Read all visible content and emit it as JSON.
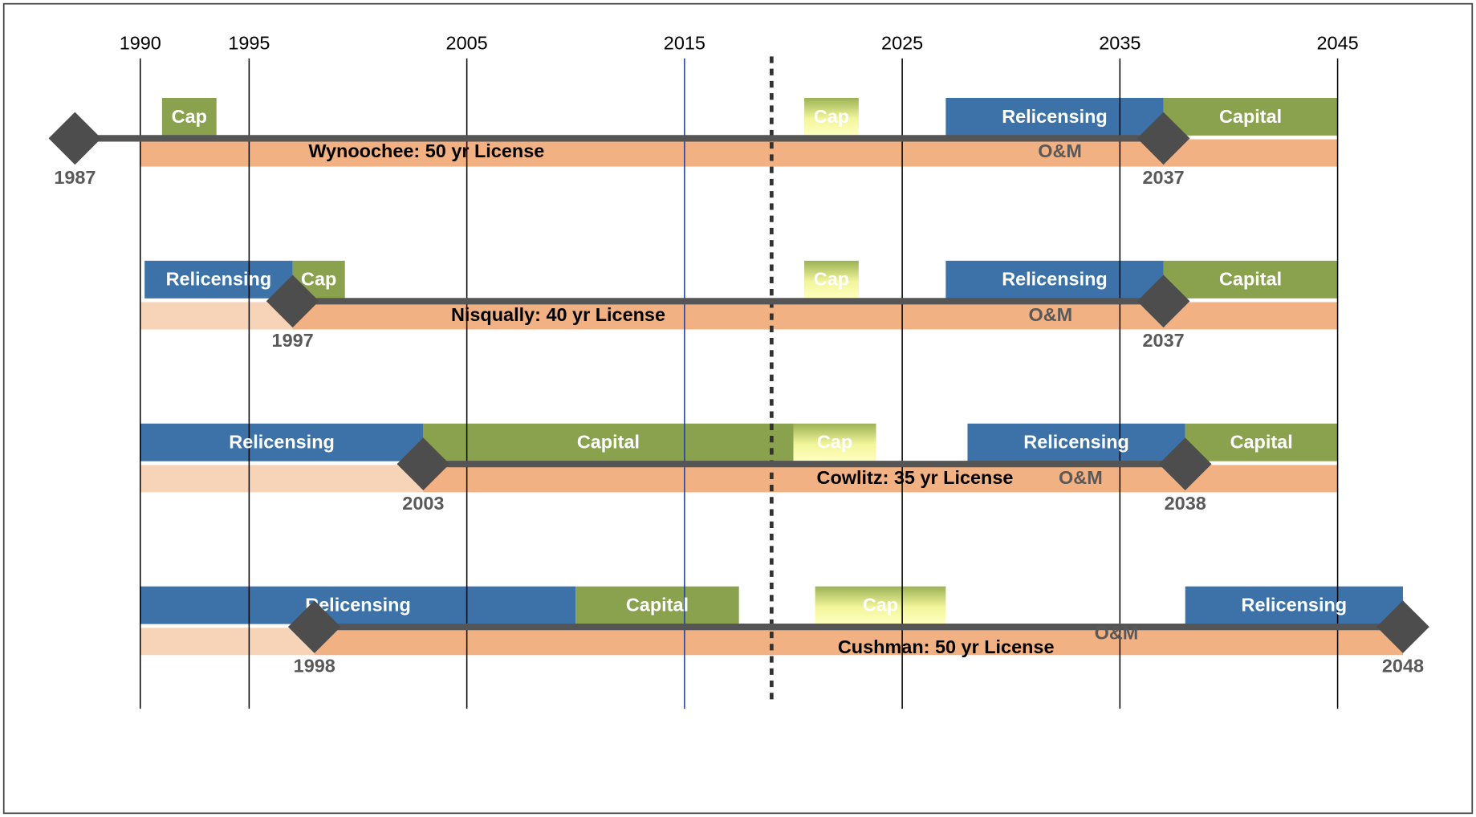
{
  "timeline": {
    "xlim": [
      1990,
      2045
    ],
    "xticks": [
      1990,
      1995,
      2005,
      2015,
      2025,
      2035,
      2045
    ],
    "tick_colors": [
      "#000000",
      "#000000",
      "#000000",
      "#1f3c9c",
      "#000000",
      "#000000",
      "#000000"
    ],
    "now": 2019,
    "rows": [
      {
        "label": "Wynoochee: 50 yr License",
        "om_label": "O&M",
        "start": 1987,
        "end": 2037,
        "band": [
          1990,
          2045
        ],
        "bars": [
          {
            "label": "Cap",
            "start": 1991,
            "end": 1993.5,
            "color": "#8aa24e"
          },
          {
            "label": "Cap",
            "start": 2020.5,
            "end": 2023,
            "color": "#f2f59a"
          },
          {
            "label": "Relicensing",
            "start": 2027,
            "end": 2037,
            "color": "#3c72a8"
          },
          {
            "label": "Capital",
            "start": 2037,
            "end": 2045,
            "color": "#8aa24e"
          }
        ]
      },
      {
        "label": "Nisqually: 40 yr License",
        "om_label": "O&M",
        "start": 1997,
        "end": 2037,
        "band": [
          1997,
          2045
        ],
        "fade": [
          1990,
          1997
        ],
        "bars": [
          {
            "label": "Relicensing",
            "start": 1990.2,
            "end": 1997,
            "color": "#3c72a8"
          },
          {
            "label": "Cap",
            "start": 1997,
            "end": 1999.4,
            "color": "#8aa24e"
          },
          {
            "label": "Cap",
            "start": 2020.5,
            "end": 2023,
            "color": "#f2f59a"
          },
          {
            "label": "Relicensing",
            "start": 2027,
            "end": 2037,
            "color": "#3c72a8"
          },
          {
            "label": "Capital",
            "start": 2037,
            "end": 2045,
            "color": "#8aa24e"
          }
        ]
      },
      {
        "label": "Cowlitz: 35 yr License",
        "om_label": "O&M",
        "start": 2003,
        "end": 2038,
        "band": [
          2003,
          2045
        ],
        "fade": [
          1990,
          2003
        ],
        "bars": [
          {
            "label": "Relicensing",
            "start": 1990,
            "end": 2003,
            "color": "#3c72a8"
          },
          {
            "label": "Capital",
            "start": 2003,
            "end": 2020,
            "color": "#8aa24e"
          },
          {
            "label": "Cap",
            "start": 2020,
            "end": 2023.8,
            "color": "#f2f59a"
          },
          {
            "label": "Relicensing",
            "start": 2028,
            "end": 2038,
            "color": "#3c72a8"
          },
          {
            "label": "Capital",
            "start": 2038,
            "end": 2045,
            "color": "#8aa24e"
          }
        ]
      },
      {
        "label": "Cushman: 50 yr License",
        "om_label": "O&M",
        "start": 1998,
        "end": 2048,
        "band": [
          1998,
          2048
        ],
        "fade": [
          1990,
          1998
        ],
        "bars": [
          {
            "label": "Relicensing",
            "start": 1990,
            "end": 2010,
            "color": "#3c72a8"
          },
          {
            "label": "Capital",
            "start": 2010,
            "end": 2017.5,
            "color": "#8aa24e"
          },
          {
            "label": "Cap",
            "start": 2021,
            "end": 2027,
            "color": "#f2f59a"
          },
          {
            "label": "Relicensing",
            "start": 2038,
            "end": 2048,
            "color": "#3c72a8"
          }
        ]
      }
    ]
  }
}
